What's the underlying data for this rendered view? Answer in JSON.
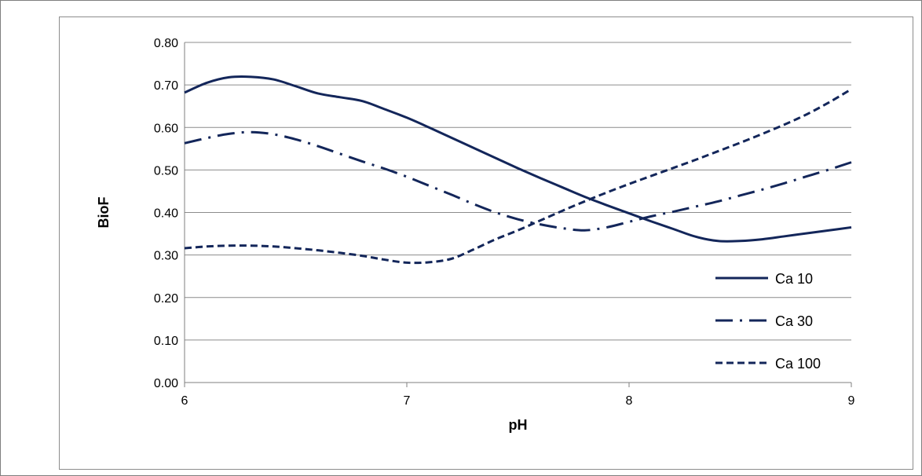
{
  "chart_data": {
    "type": "line",
    "title": "",
    "xlabel": "pH",
    "ylabel": "BioF",
    "xlim": [
      6,
      9
    ],
    "ylim": [
      0,
      0.8
    ],
    "x_ticks": [
      "6",
      "7",
      "8",
      "9"
    ],
    "y_ticks": [
      "0.00",
      "0.10",
      "0.20",
      "0.30",
      "0.40",
      "0.50",
      "0.60",
      "0.70",
      "0.80"
    ],
    "grid": "horizontal",
    "legend_position": "bottom-right",
    "line_color": "#13265a",
    "series": [
      {
        "name": "Ca 10",
        "dash": "solid",
        "points": [
          [
            6.0,
            0.682
          ],
          [
            6.1,
            0.705
          ],
          [
            6.2,
            0.718
          ],
          [
            6.3,
            0.719
          ],
          [
            6.4,
            0.713
          ],
          [
            6.5,
            0.697
          ],
          [
            6.6,
            0.68
          ],
          [
            6.7,
            0.671
          ],
          [
            6.8,
            0.662
          ],
          [
            6.9,
            0.643
          ],
          [
            7.0,
            0.623
          ],
          [
            7.1,
            0.6
          ],
          [
            7.2,
            0.576
          ],
          [
            7.3,
            0.552
          ],
          [
            7.4,
            0.528
          ],
          [
            7.5,
            0.504
          ],
          [
            7.6,
            0.481
          ],
          [
            7.7,
            0.459
          ],
          [
            7.8,
            0.437
          ],
          [
            7.9,
            0.417
          ],
          [
            8.0,
            0.398
          ],
          [
            8.1,
            0.379
          ],
          [
            8.2,
            0.361
          ],
          [
            8.3,
            0.343
          ],
          [
            8.4,
            0.333
          ],
          [
            8.5,
            0.333
          ],
          [
            8.6,
            0.337
          ],
          [
            8.7,
            0.344
          ],
          [
            8.8,
            0.351
          ],
          [
            8.9,
            0.358
          ],
          [
            9.0,
            0.365
          ]
        ]
      },
      {
        "name": "Ca 30",
        "dash": "dash-dot",
        "points": [
          [
            6.0,
            0.563
          ],
          [
            6.1,
            0.575
          ],
          [
            6.2,
            0.585
          ],
          [
            6.3,
            0.589
          ],
          [
            6.4,
            0.584
          ],
          [
            6.5,
            0.572
          ],
          [
            6.6,
            0.556
          ],
          [
            6.7,
            0.538
          ],
          [
            6.8,
            0.52
          ],
          [
            6.9,
            0.503
          ],
          [
            7.0,
            0.484
          ],
          [
            7.1,
            0.463
          ],
          [
            7.2,
            0.442
          ],
          [
            7.3,
            0.42
          ],
          [
            7.4,
            0.4
          ],
          [
            7.5,
            0.384
          ],
          [
            7.6,
            0.372
          ],
          [
            7.7,
            0.363
          ],
          [
            7.8,
            0.358
          ],
          [
            7.9,
            0.365
          ],
          [
            8.0,
            0.378
          ],
          [
            8.1,
            0.391
          ],
          [
            8.2,
            0.402
          ],
          [
            8.3,
            0.414
          ],
          [
            8.4,
            0.426
          ],
          [
            8.5,
            0.44
          ],
          [
            8.6,
            0.454
          ],
          [
            8.7,
            0.469
          ],
          [
            8.8,
            0.485
          ],
          [
            8.9,
            0.501
          ],
          [
            9.0,
            0.518
          ]
        ]
      },
      {
        "name": "Ca 100",
        "dash": "dashed",
        "points": [
          [
            6.0,
            0.316
          ],
          [
            6.1,
            0.32
          ],
          [
            6.2,
            0.322
          ],
          [
            6.3,
            0.322
          ],
          [
            6.4,
            0.32
          ],
          [
            6.5,
            0.316
          ],
          [
            6.6,
            0.311
          ],
          [
            6.7,
            0.305
          ],
          [
            6.8,
            0.298
          ],
          [
            6.9,
            0.289
          ],
          [
            7.0,
            0.282
          ],
          [
            7.1,
            0.283
          ],
          [
            7.2,
            0.291
          ],
          [
            7.3,
            0.313
          ],
          [
            7.4,
            0.337
          ],
          [
            7.5,
            0.358
          ],
          [
            7.6,
            0.381
          ],
          [
            7.7,
            0.404
          ],
          [
            7.8,
            0.426
          ],
          [
            7.9,
            0.447
          ],
          [
            8.0,
            0.467
          ],
          [
            8.1,
            0.486
          ],
          [
            8.2,
            0.505
          ],
          [
            8.3,
            0.524
          ],
          [
            8.4,
            0.544
          ],
          [
            8.5,
            0.564
          ],
          [
            8.6,
            0.585
          ],
          [
            8.7,
            0.607
          ],
          [
            8.8,
            0.631
          ],
          [
            8.9,
            0.659
          ],
          [
            9.0,
            0.69
          ]
        ]
      }
    ]
  }
}
